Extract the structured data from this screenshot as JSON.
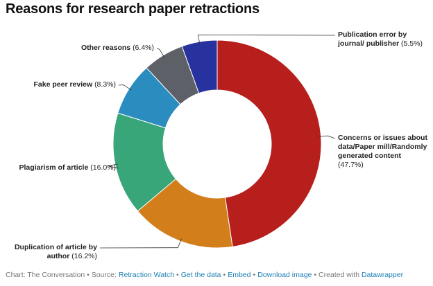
{
  "chart_data": {
    "type": "donut",
    "title": "Reasons for research paper retractions",
    "categories": [
      "Concerns or issues about data/Paper mill/Randomly generated content",
      "Duplication of article by author",
      "Plagiarism of article",
      "Fake peer review",
      "Other reasons",
      "Publication error by journal/ publisher"
    ],
    "values": [
      47.7,
      16.2,
      16.0,
      8.3,
      6.4,
      5.5
    ],
    "value_labels": [
      "(47.7%)",
      "(16.2%)",
      "(16.0%)",
      "(8.3%)",
      "(6.4%)",
      "(5.5%)"
    ],
    "colors": [
      "#b71f1c",
      "#d27e1b",
      "#38a678",
      "#2b8cbf",
      "#5e6068",
      "#27329e"
    ]
  },
  "footer": [
    {
      "text": "Chart: The Conversation • Source:",
      "link": false
    },
    {
      "text": "Retraction Watch",
      "link": true
    },
    {
      "text": "•",
      "link": false
    },
    {
      "text": "Get the data",
      "link": true
    },
    {
      "text": "•",
      "link": false
    },
    {
      "text": "Embed",
      "link": true
    },
    {
      "text": "•",
      "link": false
    },
    {
      "text": "Download image",
      "link": true
    },
    {
      "text": "• Created with",
      "link": false
    },
    {
      "text": "Datawrapper",
      "link": true
    }
  ]
}
